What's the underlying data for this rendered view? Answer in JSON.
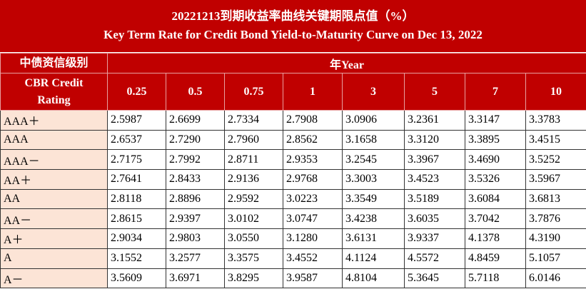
{
  "header": {
    "title_cn": "20221213到期收益率曲线关键期限点值（%）",
    "title_en": "Key Term Rate for Credit Bond Yield-to-Maturity Curve on Dec 13, 2022"
  },
  "table": {
    "rating_header_cn": "中债资信级别",
    "rating_header_en": "CBR Credit Rating",
    "year_header": "年Year",
    "tenors": [
      "0.25",
      "0.5",
      "0.75",
      "1",
      "3",
      "5",
      "7",
      "10"
    ],
    "rows": [
      {
        "rating": "AAA＋",
        "values": [
          "2.5987",
          "2.6699",
          "2.7334",
          "2.7908",
          "3.0906",
          "3.2361",
          "3.3147",
          "3.3783"
        ]
      },
      {
        "rating": "AAA",
        "values": [
          "2.6537",
          "2.7290",
          "2.7960",
          "2.8562",
          "3.1658",
          "3.3120",
          "3.3895",
          "3.4515"
        ]
      },
      {
        "rating": "AAA－",
        "values": [
          "2.7175",
          "2.7992",
          "2.8711",
          "2.9353",
          "3.2545",
          "3.3967",
          "3.4690",
          "3.5252"
        ]
      },
      {
        "rating": "AA＋",
        "values": [
          "2.7641",
          "2.8433",
          "2.9136",
          "2.9768",
          "3.3003",
          "3.4523",
          "3.5326",
          "3.5967"
        ]
      },
      {
        "rating": "AA",
        "values": [
          "2.8118",
          "2.8896",
          "2.9592",
          "3.0223",
          "3.3549",
          "3.5189",
          "3.6084",
          "3.6813"
        ]
      },
      {
        "rating": "AA－",
        "values": [
          "2.8615",
          "2.9397",
          "3.0102",
          "3.0747",
          "3.4238",
          "3.6035",
          "3.7042",
          "3.7876"
        ]
      },
      {
        "rating": "A＋",
        "values": [
          "2.9034",
          "2.9803",
          "3.0550",
          "3.1280",
          "3.6131",
          "3.9337",
          "4.1378",
          "4.3190"
        ]
      },
      {
        "rating": "A",
        "values": [
          "3.1552",
          "3.2577",
          "3.3575",
          "3.4552",
          "4.1124",
          "4.5572",
          "4.8459",
          "5.1057"
        ]
      },
      {
        "rating": "A－",
        "values": [
          "3.5609",
          "3.6971",
          "3.8295",
          "3.9587",
          "4.8104",
          "5.3645",
          "5.7118",
          "6.0146"
        ]
      }
    ]
  }
}
